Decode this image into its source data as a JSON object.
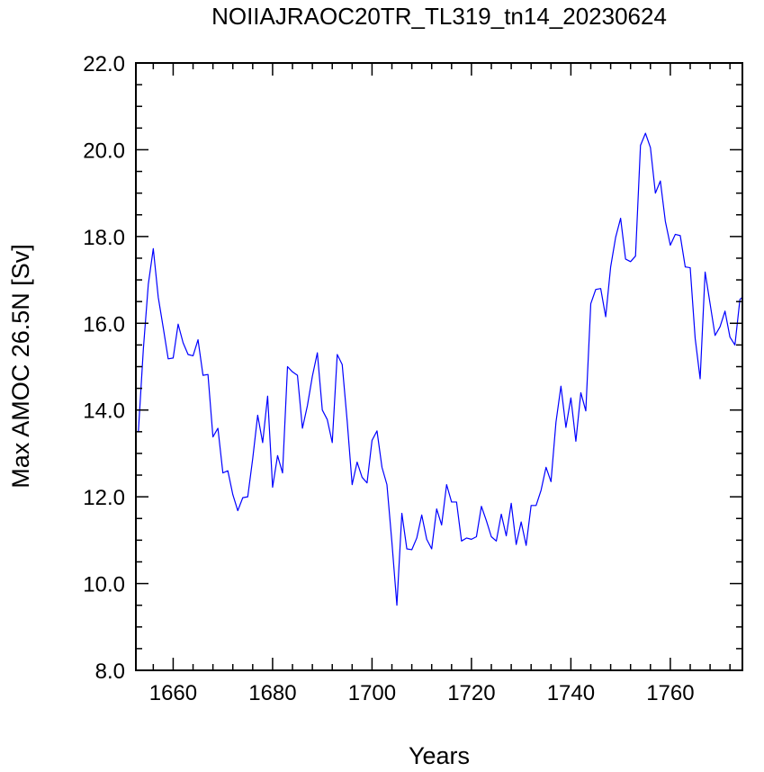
{
  "chart_data": {
    "type": "line",
    "title": "NOIIAJRAOC20TR_TL319_tn14_20230624",
    "xlabel": "Years",
    "ylabel": "Max AMOC 26.5N [Sv]",
    "xlim": [
      1652.5,
      1774.5
    ],
    "ylim": [
      8.0,
      22.0
    ],
    "x_ticks": [
      1660,
      1680,
      1700,
      1720,
      1740,
      1760
    ],
    "x_tick_labels": [
      "1660",
      "1680",
      "1700",
      "1720",
      "1740",
      "1760"
    ],
    "y_ticks": [
      8,
      10,
      12,
      14,
      16,
      18,
      20,
      22
    ],
    "y_tick_labels": [
      "8.0",
      "10.0",
      "12.0",
      "14.0",
      "16.0",
      "18.0",
      "20.0",
      "22.0"
    ],
    "grid": false,
    "line_color": "#0000ff",
    "series": [
      {
        "x": [
          1653,
          1654,
          1655,
          1656,
          1657,
          1658,
          1659,
          1660,
          1661,
          1662,
          1663,
          1664,
          1665,
          1666,
          1667,
          1668,
          1669,
          1670,
          1671,
          1672,
          1673,
          1674,
          1675,
          1676,
          1677,
          1678,
          1679,
          1680,
          1681,
          1682,
          1683,
          1684,
          1685,
          1686,
          1687,
          1688,
          1689,
          1690,
          1691,
          1692,
          1693,
          1694,
          1695,
          1696,
          1697,
          1698,
          1699,
          1700,
          1701,
          1702,
          1703,
          1704,
          1705,
          1706,
          1707,
          1708,
          1709,
          1710,
          1711,
          1712,
          1713,
          1714,
          1715,
          1716,
          1717,
          1718,
          1719,
          1720,
          1721,
          1722,
          1723,
          1724,
          1725,
          1726,
          1727,
          1728,
          1729,
          1730,
          1731,
          1732,
          1733,
          1734,
          1735,
          1736,
          1737,
          1738,
          1739,
          1740,
          1741,
          1742,
          1743,
          1744,
          1745,
          1746,
          1747,
          1748,
          1749,
          1750,
          1751,
          1752,
          1753,
          1754,
          1755,
          1756,
          1757,
          1758,
          1759,
          1760,
          1761,
          1762,
          1763,
          1764,
          1765,
          1766,
          1767,
          1768,
          1769,
          1770,
          1771,
          1772,
          1773,
          1774,
          1774.5
        ],
        "values": [
          13.5,
          15.4,
          16.9,
          17.72,
          16.6,
          15.9,
          15.18,
          15.2,
          15.98,
          15.55,
          15.28,
          15.25,
          15.62,
          14.8,
          14.82,
          13.38,
          13.58,
          12.55,
          12.6,
          12.05,
          11.68,
          11.98,
          12.0,
          12.88,
          13.88,
          13.25,
          14.32,
          12.22,
          12.95,
          12.55,
          15.0,
          14.88,
          14.8,
          13.58,
          14.1,
          14.78,
          15.32,
          14.0,
          13.78,
          13.25,
          15.28,
          15.05,
          13.75,
          12.28,
          12.8,
          12.45,
          12.32,
          13.3,
          13.52,
          12.68,
          12.28,
          10.95,
          9.5,
          11.62,
          10.8,
          10.78,
          11.05,
          11.58,
          11.02,
          10.8,
          11.72,
          11.35,
          12.28,
          11.88,
          11.88,
          10.98,
          11.05,
          11.02,
          11.08,
          11.78,
          11.45,
          11.08,
          10.98,
          11.6,
          11.1,
          11.85,
          10.9,
          11.42,
          10.88,
          11.8,
          11.8,
          12.15,
          12.68,
          12.35,
          13.72,
          14.55,
          13.6,
          14.28,
          13.28,
          14.4,
          13.98,
          16.45,
          16.78,
          16.8,
          16.15,
          17.3,
          17.98,
          18.42,
          17.48,
          17.42,
          17.55,
          20.1,
          20.38,
          20.05,
          19.0,
          19.28,
          18.35,
          17.8,
          18.05,
          18.02,
          17.3,
          17.28,
          15.65,
          14.72,
          17.18,
          16.45,
          15.72,
          15.92,
          16.28,
          15.68,
          15.5,
          16.55,
          16.6
        ]
      }
    ]
  }
}
